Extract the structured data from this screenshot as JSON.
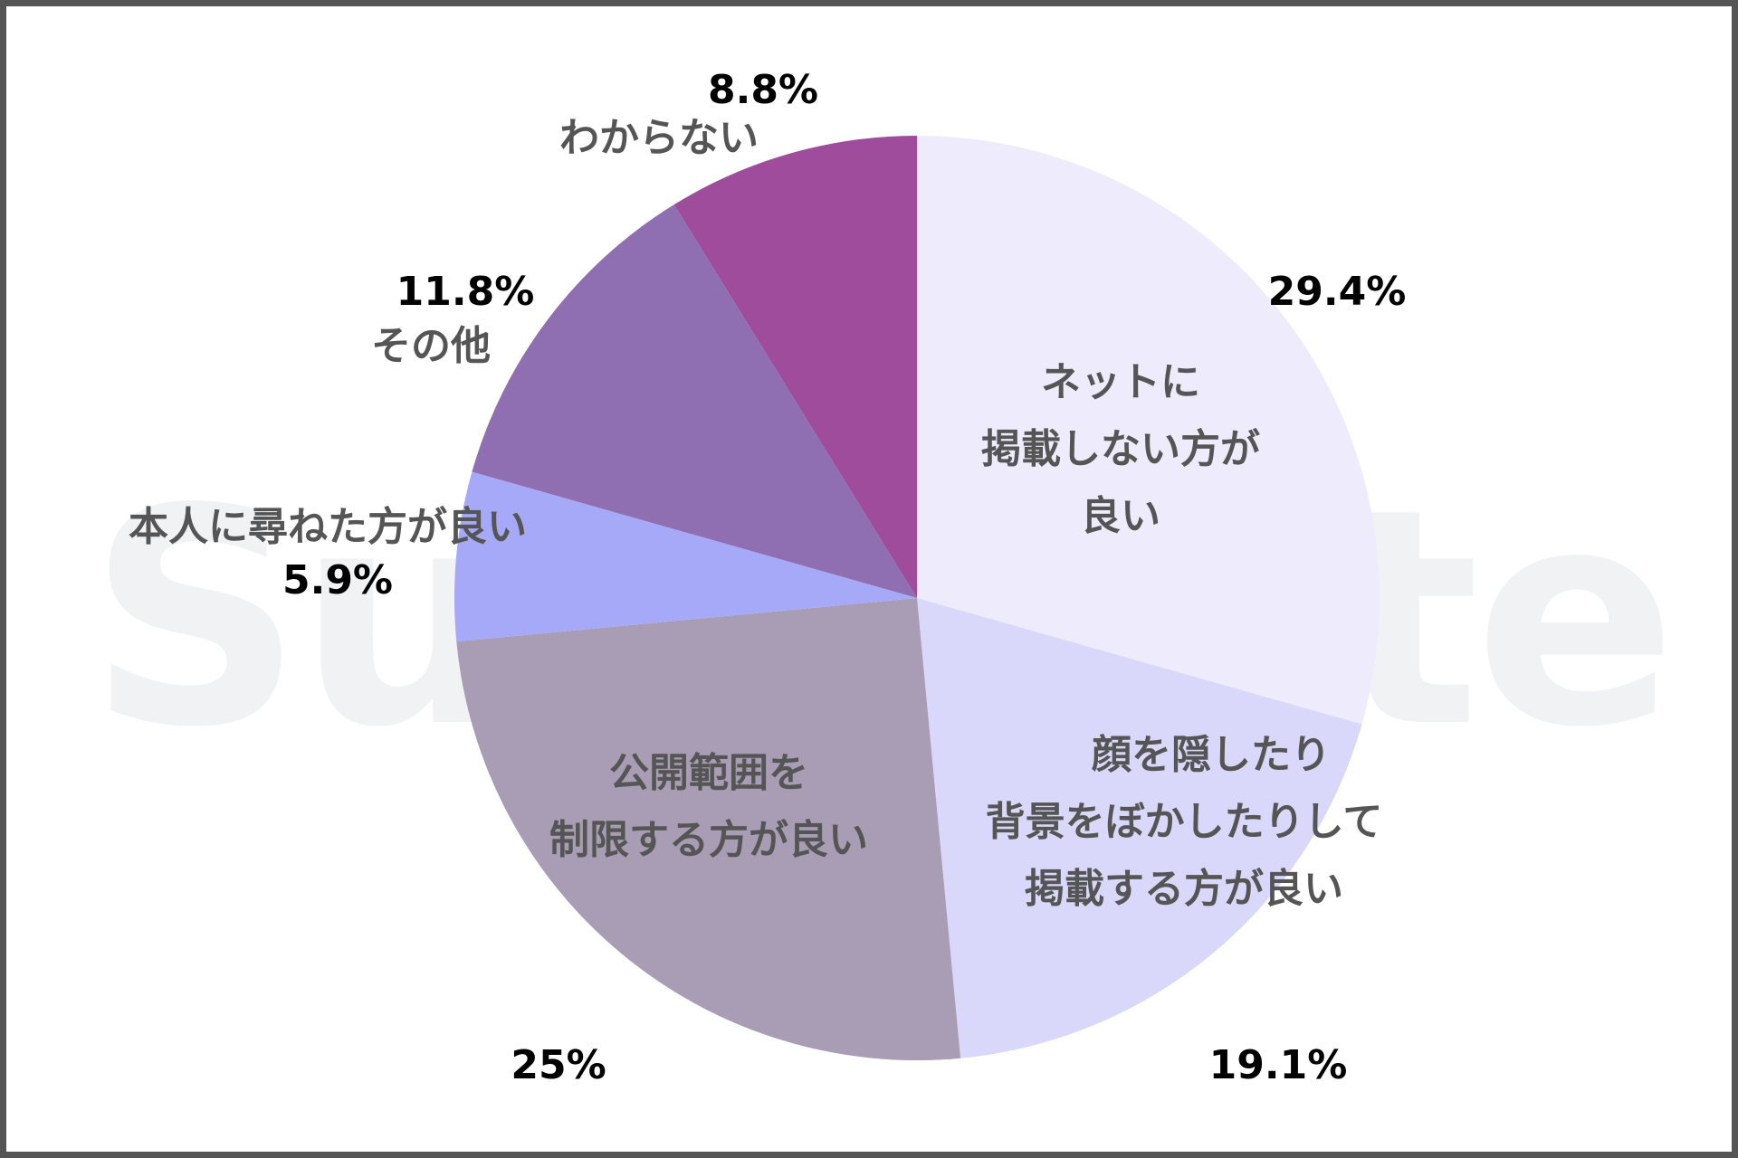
{
  "chart_data": {
    "type": "pie",
    "title": "",
    "start_angle": "12 o'clock",
    "direction": "clockwise",
    "slices": [
      {
        "label": "ネットに掲載しない方が良い",
        "lines": [
          "ネットに",
          "掲載しない方が",
          "良い"
        ],
        "value": 29.4,
        "value_label": "29.4%",
        "color": "#EEEBFC"
      },
      {
        "label": "顔を隠したり背景をぼかしたりして掲載する方が良い",
        "lines": [
          "顔を隠したり",
          "背景をぼかしたりして",
          "掲載する方が良い"
        ],
        "value": 19.1,
        "value_label": "19.1%",
        "color": "#D9D8FB"
      },
      {
        "label": "公開範囲を制限する方が良い",
        "lines": [
          "公開範囲を",
          "制限する方が良い"
        ],
        "value": 25,
        "value_label": "25%",
        "color": "#A89DB4"
      },
      {
        "label": "本人に尋ねた方が良い",
        "lines": [
          "本人に尋ねた方が良い"
        ],
        "value": 5.9,
        "value_label": "5.9%",
        "color": "#A6A8F8"
      },
      {
        "label": "その他",
        "lines": [
          "その他"
        ],
        "value": 11.8,
        "value_label": "11.8%",
        "color": "#8F6FB1"
      },
      {
        "label": "わからない",
        "lines": [
          "わからない"
        ],
        "value": 8.8,
        "value_label": "8.8%",
        "color": "#A04C9C"
      }
    ],
    "legend": "none (labels placed on/near slices)"
  },
  "watermark": {
    "left": "Su",
    "right": "te"
  },
  "colors": {
    "label_text": "#555555",
    "percent_text": "#000000",
    "frame_border": "#555555",
    "watermark": "#F1F2F4"
  }
}
